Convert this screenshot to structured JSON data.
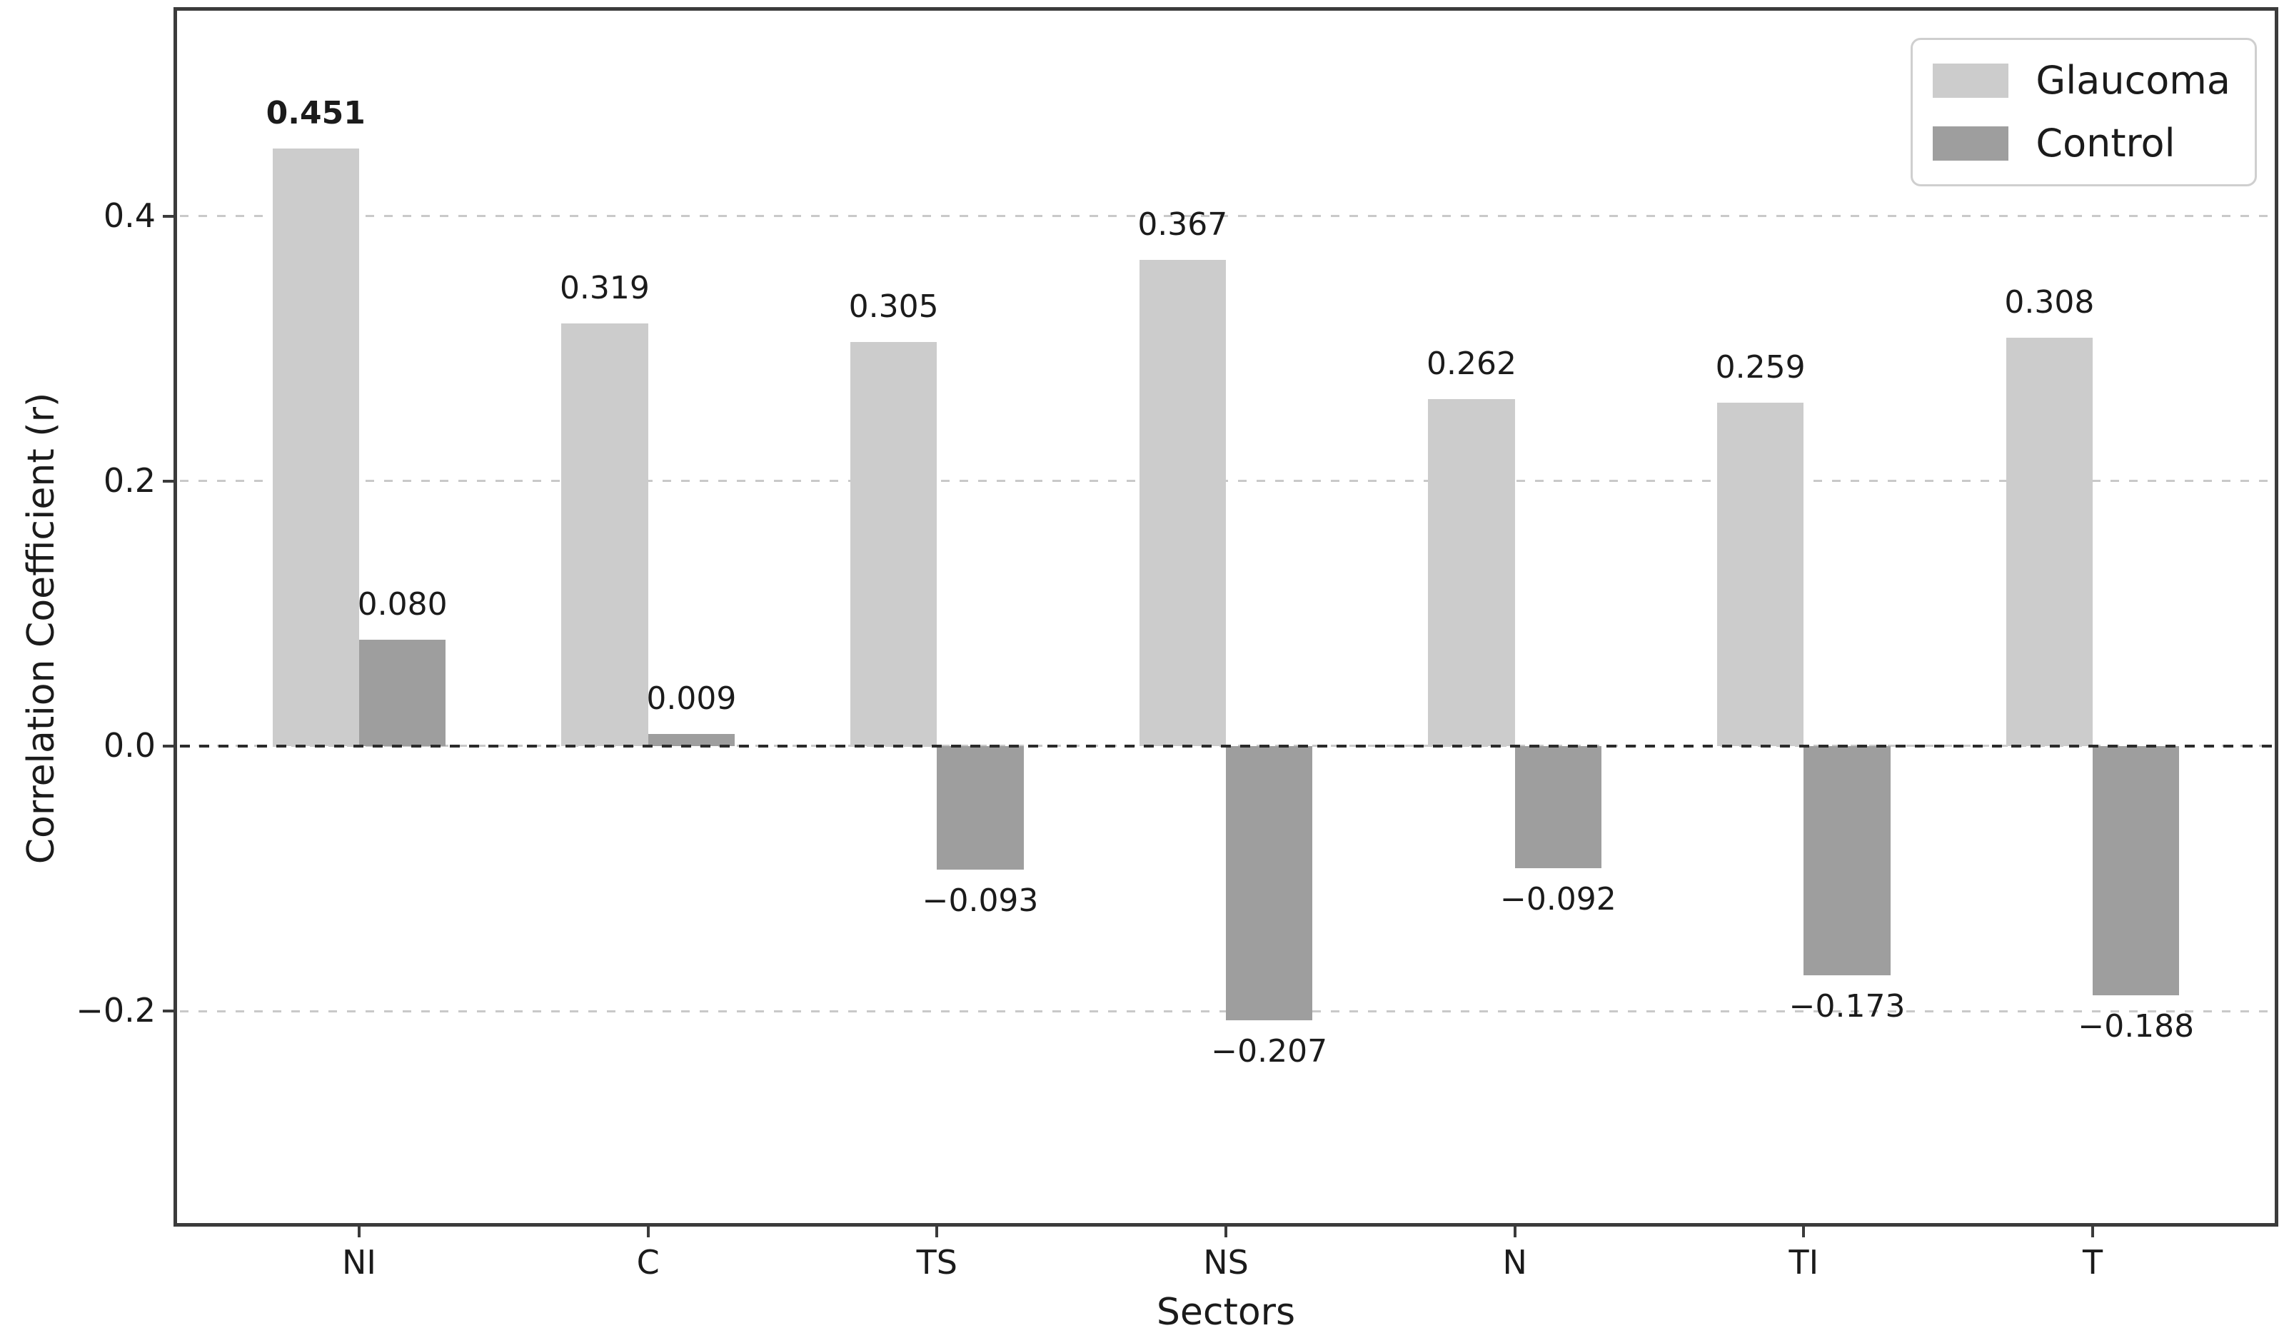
{
  "figure": {
    "ylabel": "Correlation Coefficient (r)",
    "xlabel": "Sectors"
  },
  "chart_data": {
    "type": "bar",
    "title": "",
    "xlabel": "Sectors",
    "ylabel": "Correlation Coefficient (r)",
    "categories": [
      "NI",
      "C",
      "TS",
      "NS",
      "N",
      "TI",
      "T"
    ],
    "series": [
      {
        "name": "Glaucoma",
        "color": "#cccccc",
        "values": [
          0.451,
          0.319,
          0.305,
          0.367,
          0.262,
          0.259,
          0.308
        ],
        "labels": [
          "0.451",
          "0.319",
          "0.305",
          "0.367",
          "0.262",
          "0.259",
          "0.308"
        ],
        "bold_labels": [
          true,
          false,
          false,
          false,
          false,
          false,
          false
        ]
      },
      {
        "name": "Control",
        "color": "#9e9e9e",
        "values": [
          0.08,
          0.009,
          -0.093,
          -0.207,
          -0.092,
          -0.173,
          -0.188
        ],
        "labels": [
          "0.080",
          "0.009",
          "−0.093",
          "−0.207",
          "−0.092",
          "−0.173",
          "−0.188"
        ],
        "bold_labels": [
          false,
          false,
          false,
          false,
          false,
          false,
          false
        ]
      }
    ],
    "yticks": [
      0.4,
      0.2,
      0.0,
      -0.2
    ],
    "ytick_labels": [
      "0.4",
      "0.2",
      "0.0",
      "−0.2"
    ],
    "ylim": [
      -0.36,
      0.555
    ],
    "xlim": [
      -0.63,
      6.63
    ],
    "bar_width": 0.3,
    "grid": "horizontal dashed at yticks",
    "zero_line": true,
    "legend_position": "upper right"
  }
}
